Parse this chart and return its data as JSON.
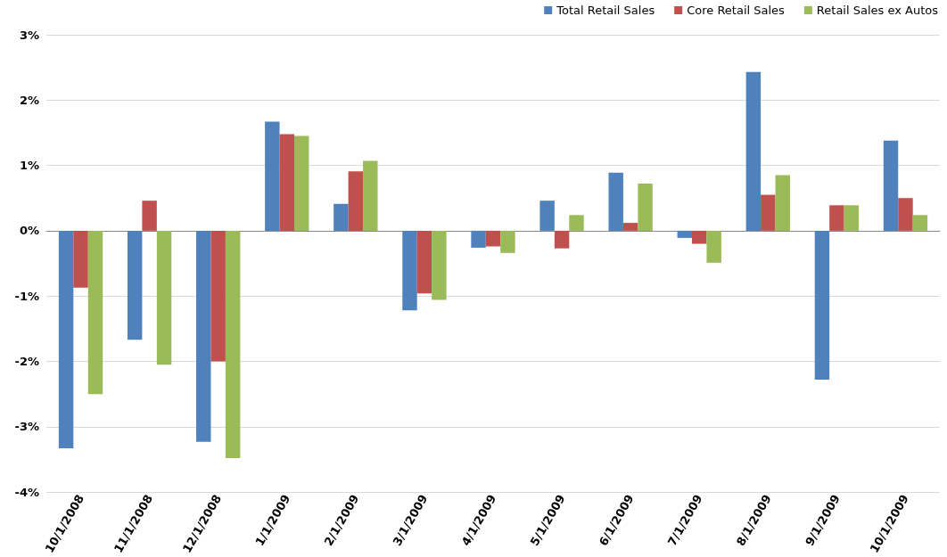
{
  "chart_data": {
    "type": "bar",
    "categories": [
      "10/1/2008",
      "11/1/2008",
      "12/1/2008",
      "1/1/2009",
      "2/1/2009",
      "3/1/2009",
      "4/1/2009",
      "5/1/2009",
      "6/1/2009",
      "7/1/2009",
      "8/1/2009",
      "9/1/2009",
      "10/1/2009"
    ],
    "series": [
      {
        "name": "Total Retail Sales",
        "color": "#4f81bd",
        "values": [
          -3.33,
          -1.67,
          -3.23,
          1.67,
          0.41,
          -1.22,
          -0.26,
          0.46,
          0.89,
          -0.11,
          2.43,
          -2.28,
          1.38
        ]
      },
      {
        "name": "Core Retail Sales",
        "color": "#c0504d",
        "values": [
          -0.87,
          0.46,
          -2.0,
          1.48,
          0.91,
          -0.96,
          -0.24,
          -0.27,
          0.12,
          -0.2,
          0.55,
          0.39,
          0.5
        ]
      },
      {
        "name": "Retail Sales ex Autos",
        "color": "#9bbb59",
        "values": [
          -2.5,
          -2.05,
          -3.48,
          1.45,
          1.07,
          -1.06,
          -0.34,
          0.24,
          0.72,
          -0.49,
          0.85,
          0.39,
          0.24
        ]
      }
    ],
    "ylim": [
      -4,
      3
    ],
    "yticks": [
      {
        "value": -4,
        "label": "-4%"
      },
      {
        "value": -3,
        "label": "-3%"
      },
      {
        "value": -2,
        "label": "-2%"
      },
      {
        "value": -1,
        "label": "-1%"
      },
      {
        "value": 0,
        "label": "0%"
      },
      {
        "value": 1,
        "label": "1%"
      },
      {
        "value": 2,
        "label": "2%"
      },
      {
        "value": 3,
        "label": "3%"
      }
    ],
    "grid": "y",
    "legend": "top right"
  }
}
